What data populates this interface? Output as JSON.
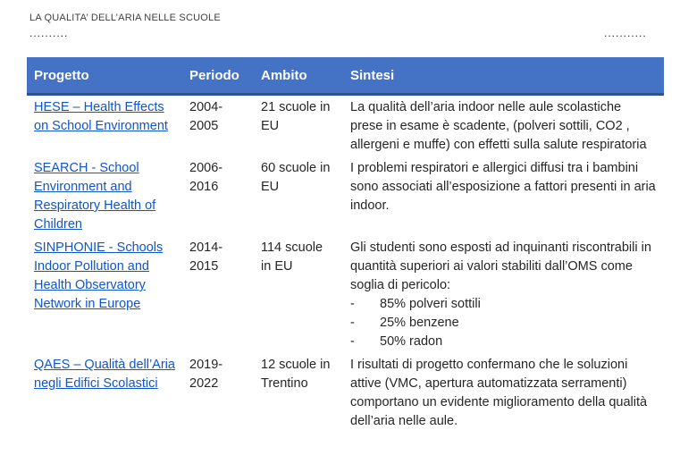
{
  "header": {
    "title": "LA QUALITA’ DELL’ARIA NELLE SCUOLE",
    "dots_left": "..........",
    "dots_right": "..........."
  },
  "table": {
    "columns": {
      "project": "Progetto",
      "period": "Periodo",
      "scope": "Ambito",
      "summary": "Sintesi"
    },
    "rows": [
      {
        "project": "HESE – Health Effects on School Environment",
        "period": "2004-2005",
        "scope": "21 scuole in EU",
        "summary": "La qualità dell’aria indoor nelle aule scolastiche prese in esame è scadente, (polveri sottili, CO2 , allergeni e muffe) con effetti sulla salute respiratoria"
      },
      {
        "project": "SEARCH - School Environment and Respiratory Health of Children",
        "period": "2006-2016",
        "scope": "60 scuole in EU",
        "summary": "I problemi respiratori e allergici diffusi tra i bambini sono associati all’esposizione a fattori presenti in aria indoor."
      },
      {
        "project": "SINPHONIE - Schools Indoor Pollution and Health Observatory Network in Europe",
        "period": "2014-2015",
        "scope": "114 scuole in EU",
        "summary": "Gli studenti sono esposti ad inquinanti riscontrabili in quantità superiori ai valori stabiliti dall’OMS come soglia di pericolo:",
        "bullets": [
          "85% polveri sottili",
          "25% benzene",
          "50% radon"
        ]
      },
      {
        "project": "QAES – Qualità dell’Aria negli Edifici Scolastici",
        "period": "2019-2022",
        "scope": "12 scuole in Trentino",
        "summary": "I risultati di progetto confermano che le soluzioni attive (VMC, apertura automatizzata serramenti) comportano un evidente miglioramento della qualità dell’aria nelle aule."
      }
    ]
  }
}
